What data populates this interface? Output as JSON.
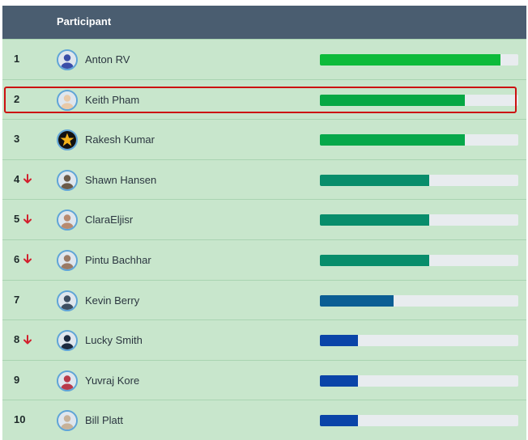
{
  "header": {
    "participant_label": "Participant"
  },
  "rows": [
    {
      "rank": "1",
      "name": "Anton RV",
      "down": false,
      "progress": 0.91,
      "bar_color": "#0dbb3a",
      "avatar_color": "#3a4ea8",
      "avatar_icon": "person-avatar"
    },
    {
      "rank": "2",
      "name": "Keith Pham",
      "down": false,
      "progress": 0.73,
      "bar_color": "#06a844",
      "avatar_color": "#e9c9a8",
      "avatar_icon": "person-avatar"
    },
    {
      "rank": "3",
      "name": "Rakesh Kumar",
      "down": false,
      "progress": 0.73,
      "bar_color": "#06a84a",
      "avatar_color": "#111111",
      "avatar_icon": "star-avatar"
    },
    {
      "rank": "4",
      "name": "Shawn Hansen",
      "down": true,
      "progress": 0.55,
      "bar_color": "#088d6b",
      "avatar_color": "#6b5a4a",
      "avatar_icon": "person-avatar"
    },
    {
      "rank": "5",
      "name": "ClaraEljisr",
      "down": true,
      "progress": 0.55,
      "bar_color": "#088d6b",
      "avatar_color": "#b88a70",
      "avatar_icon": "person-avatar"
    },
    {
      "rank": "6",
      "name": "Pintu Bachhar",
      "down": true,
      "progress": 0.55,
      "bar_color": "#088d6b",
      "avatar_color": "#9a7a66",
      "avatar_icon": "person-avatar"
    },
    {
      "rank": "7",
      "name": "Kevin Berry",
      "down": false,
      "progress": 0.37,
      "bar_color": "#0b5e94",
      "avatar_color": "#3f4f62",
      "avatar_icon": "person-avatar"
    },
    {
      "rank": "8",
      "name": "Lucky Smith",
      "down": true,
      "progress": 0.19,
      "bar_color": "#0a44a8",
      "avatar_color": "#1c2a40",
      "avatar_icon": "person-avatar"
    },
    {
      "rank": "9",
      "name": "Yuvraj Kore",
      "down": false,
      "progress": 0.19,
      "bar_color": "#0a44a8",
      "avatar_color": "#b83a4a",
      "avatar_icon": "person-avatar"
    },
    {
      "rank": "10",
      "name": "Bill Platt",
      "down": false,
      "progress": 0.19,
      "bar_color": "#0a44a8",
      "avatar_color": "#c7b29a",
      "avatar_icon": "person-avatar"
    }
  ],
  "highlighted_rank": "2",
  "colors": {
    "header_bg": "#4a5d70",
    "row_bg": "#c8e6cc",
    "track_bg": "#e8ecef",
    "highlight_border": "#cc1111",
    "down_arrow": "#d21f2c"
  }
}
